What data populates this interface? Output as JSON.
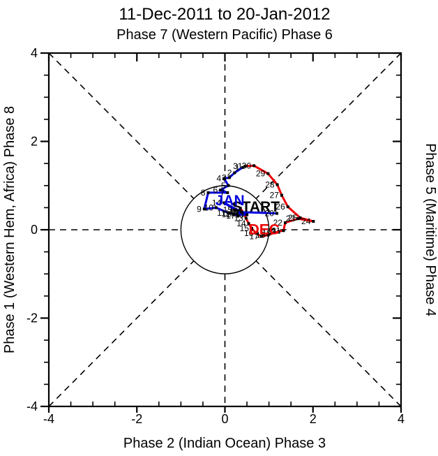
{
  "title": "11-Dec-2011 to 20-Jan-2012",
  "subtitle_top": "Phase 7 (Western Pacific) Phase 6",
  "axis_labels": {
    "bottom": "Phase 2 (Indian Ocean) Phase 3",
    "left": "Phase 1 (Western Hem, Africa) Phase 8",
    "right": "Phase 5 (Maritime) Phase 4"
  },
  "colors": {
    "december_line": "#ee0000",
    "january_line": "#0000dd",
    "start_label": "#000000",
    "axis": "#000000",
    "marker": "#000000"
  },
  "chart_data": {
    "type": "line",
    "title": "11-Dec-2011 to 20-Jan-2012",
    "subtitle": "Phase 7 (Western Pacific) Phase 6",
    "xlabel": "Phase 2 (Indian Ocean) Phase 3",
    "ylabel_left": "Phase 1 (Western Hem, Africa) Phase 8",
    "ylabel_right": "Phase 5 (Maritime) Phase 4",
    "xlim": [
      -4,
      4
    ],
    "ylim": [
      -4,
      4
    ],
    "x_tick_labels": [
      "-4",
      "-2",
      "0",
      "2",
      "4"
    ],
    "y_tick_labels": [
      "4",
      "2",
      "0",
      "-2",
      "-4"
    ],
    "tick_major": [
      -4,
      -2,
      0,
      2,
      4
    ],
    "tick_minor_step": 0.5,
    "unit_circle_radius": 1,
    "grid": "dashed-phase-lines",
    "legend_position": "none",
    "series": [
      {
        "name": "DEC",
        "month": "December 2011",
        "color": "#ee0000",
        "points": [
          {
            "day": 11,
            "x": 0.35,
            "y": 0.49,
            "label": ""
          },
          {
            "day": 12,
            "x": 0.43,
            "y": 0.37,
            "label": "12"
          },
          {
            "day": 13,
            "x": 0.48,
            "y": 0.26,
            "label": "13"
          },
          {
            "day": 14,
            "x": 0.54,
            "y": 0.14,
            "label": "14"
          },
          {
            "day": 15,
            "x": 0.61,
            "y": 0.03,
            "label": "15"
          },
          {
            "day": 16,
            "x": 0.71,
            "y": -0.08,
            "label": "16"
          },
          {
            "day": 17,
            "x": 0.83,
            "y": -0.15,
            "label": "17"
          },
          {
            "day": 18,
            "x": 0.98,
            "y": -0.12,
            "label": "18"
          },
          {
            "day": 19,
            "x": 1.12,
            "y": -0.07,
            "label": "19"
          },
          {
            "day": 20,
            "x": 1.22,
            "y": -0.04,
            "label": "20"
          },
          {
            "day": 21,
            "x": 1.33,
            "y": -0.02,
            "label": "21"
          },
          {
            "day": 22,
            "x": 1.37,
            "y": 0.16,
            "label": "22"
          },
          {
            "day": 23,
            "x": 1.66,
            "y": 0.25,
            "label": "23"
          },
          {
            "day": 24,
            "x": 2.01,
            "y": 0.19,
            "label": "24"
          },
          {
            "day": 25,
            "x": 1.71,
            "y": 0.27,
            "label": "25"
          },
          {
            "day": 26,
            "x": 1.43,
            "y": 0.52,
            "label": "26"
          },
          {
            "day": 27,
            "x": 1.29,
            "y": 0.78,
            "label": "27"
          },
          {
            "day": 28,
            "x": 1.19,
            "y": 1.02,
            "label": "28"
          },
          {
            "day": 29,
            "x": 0.98,
            "y": 1.27,
            "label": "29"
          },
          {
            "day": 30,
            "x": 0.66,
            "y": 1.45,
            "label": "30"
          },
          {
            "day": 31,
            "x": 0.46,
            "y": 1.44,
            "label": "31"
          }
        ]
      },
      {
        "name": "JAN",
        "month": "January 2012",
        "color": "#0000dd",
        "points": [
          {
            "day": 1,
            "x": 0.4,
            "y": 1.41,
            "label": "1"
          },
          {
            "day": 2,
            "x": 0.22,
            "y": 1.29,
            "label": "2"
          },
          {
            "day": 3,
            "x": 0.1,
            "y": 1.18,
            "label": "3"
          },
          {
            "day": 4,
            "x": -0.02,
            "y": 1.16,
            "label": "4"
          },
          {
            "day": 5,
            "x": 0.08,
            "y": 1.0,
            "label": "5"
          },
          {
            "day": 6,
            "x": -0.1,
            "y": 0.9,
            "label": "6"
          },
          {
            "day": 7,
            "x": 0.06,
            "y": 0.84,
            "label": "7"
          },
          {
            "day": 8,
            "x": -0.38,
            "y": 0.84,
            "label": "8"
          },
          {
            "day": 9,
            "x": -0.47,
            "y": 0.47,
            "label": "9"
          },
          {
            "day": 10,
            "x": -0.2,
            "y": 0.5,
            "label": "10"
          },
          {
            "day": 11,
            "x": 0.08,
            "y": 0.38,
            "label": "11"
          },
          {
            "day": 12,
            "x": 0.2,
            "y": 0.35,
            "label": "12"
          },
          {
            "day": 13,
            "x": 0.5,
            "y": 0.34,
            "label": "13"
          },
          {
            "day": 14,
            "x": -0.02,
            "y": 0.61,
            "label": "14"
          },
          {
            "day": 15,
            "x": 0.23,
            "y": 0.45,
            "label": "15"
          },
          {
            "day": 16,
            "x": 0.37,
            "y": 0.41,
            "label": "16"
          },
          {
            "day": 17,
            "x": 0.3,
            "y": 0.32,
            "label": "17"
          },
          {
            "day": 18,
            "x": 0.27,
            "y": 0.37,
            "label": "18"
          },
          {
            "day": 19,
            "x": 0.38,
            "y": 0.4,
            "label": "19"
          },
          {
            "day": 20,
            "x": 1.18,
            "y": 0.37,
            "label": "20"
          }
        ]
      }
    ],
    "annotations": [
      {
        "text": "START",
        "x": 0.16,
        "y": 0.41,
        "color": "#000000"
      },
      {
        "text": "JAN",
        "x": -0.22,
        "y": 0.55,
        "color": "#0000dd"
      },
      {
        "text": "DEC",
        "x": 0.54,
        "y": -0.1,
        "color": "#ee0000"
      }
    ]
  }
}
